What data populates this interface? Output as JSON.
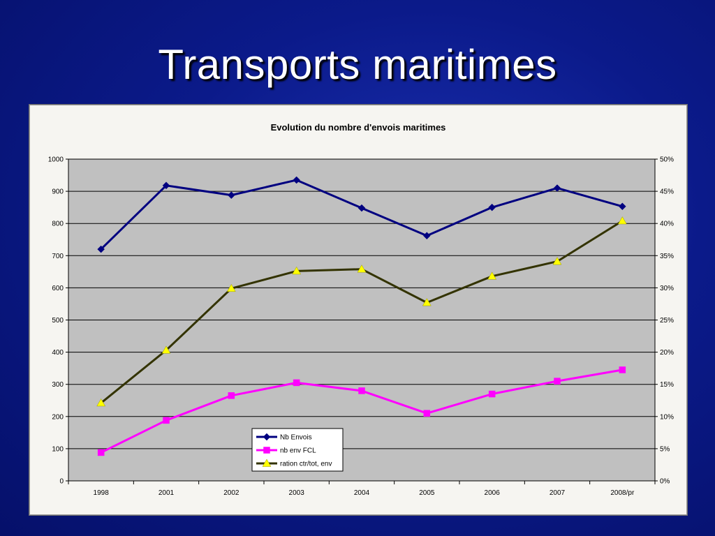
{
  "slide": {
    "title": "Transports maritimes"
  },
  "chart_data": {
    "type": "line",
    "title": "Evolution du nombre d'envois maritimes",
    "categories": [
      "1998",
      "2001",
      "2002",
      "2003",
      "2004",
      "2005",
      "2006",
      "2007",
      "2008/pr"
    ],
    "y_left": {
      "min": 0,
      "max": 1000,
      "ticks": [
        "0",
        "100",
        "200",
        "300",
        "400",
        "500",
        "600",
        "700",
        "800",
        "900",
        "1000"
      ]
    },
    "y_right": {
      "min": 0,
      "max": 0.5,
      "ticks": [
        "0%",
        "5%",
        "10%",
        "15%",
        "20%",
        "25%",
        "30%",
        "35%",
        "40%",
        "45%",
        "50%"
      ]
    },
    "grid": true,
    "legend_position": "bottom-center",
    "plot_background": "#c0c0c0",
    "series": [
      {
        "name": "Nb Envois",
        "axis": "left",
        "color": "#000080",
        "marker": "diamond",
        "values": [
          720,
          918,
          888,
          935,
          848,
          762,
          850,
          910,
          853
        ]
      },
      {
        "name": "nb env FCL",
        "axis": "left",
        "color": "#ff00ff",
        "marker": "square",
        "values": [
          88,
          188,
          265,
          305,
          280,
          210,
          270,
          310,
          345
        ]
      },
      {
        "name": "ration ctr/tot, env",
        "axis": "right",
        "color": "#333300",
        "marker_color": "#ffff00",
        "marker": "triangle",
        "values": [
          0.121,
          0.203,
          0.299,
          0.326,
          0.329,
          0.277,
          0.318,
          0.341,
          0.404
        ]
      }
    ]
  }
}
